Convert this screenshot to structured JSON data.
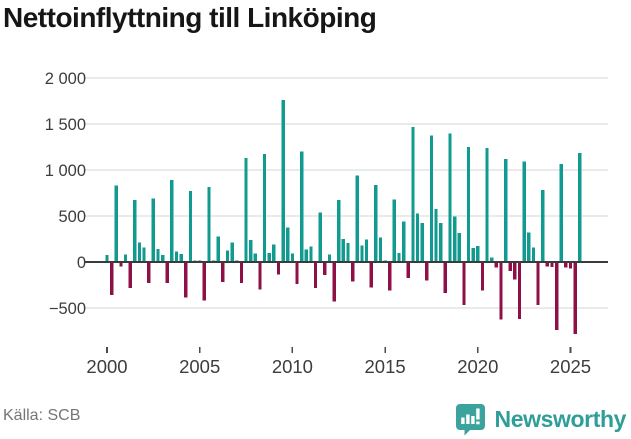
{
  "title": "Nettoinflyttning till Linköping",
  "source": "Källa: SCB",
  "logo": {
    "text": "Newsworthy",
    "badge_color": "#3ba29c",
    "text_color": "#2f9e99",
    "icon": "bar-chart-exclamation-badge"
  },
  "chart_data": {
    "type": "bar",
    "title": "Nettoinflyttning till Linköping",
    "frequency": "quarterly",
    "x_start": "2000 Q1",
    "categories_note": "quarters from 2000 Q1 to 2025 Q3",
    "values": [
      75,
      -360,
      830,
      -50,
      80,
      -285,
      675,
      210,
      160,
      -230,
      690,
      140,
      75,
      -230,
      890,
      115,
      85,
      -385,
      770,
      15,
      15,
      -420,
      815,
      15,
      275,
      -215,
      125,
      210,
      15,
      -230,
      1130,
      240,
      95,
      -300,
      1175,
      100,
      190,
      -135,
      1760,
      375,
      90,
      -240,
      1200,
      135,
      170,
      -285,
      540,
      -140,
      80,
      -430,
      675,
      250,
      205,
      -210,
      940,
      180,
      245,
      -275,
      835,
      265,
      15,
      -310,
      680,
      100,
      440,
      -175,
      1465,
      525,
      425,
      -200,
      1375,
      575,
      425,
      -335,
      1395,
      495,
      315,
      -465,
      1250,
      150,
      175,
      -310,
      1240,
      50,
      -60,
      -625,
      1120,
      -100,
      -190,
      -620,
      1095,
      320,
      160,
      -465,
      785,
      -50,
      -55,
      -740,
      1065,
      -60,
      -70,
      -780,
      1185
    ],
    "y_ticks": [
      2000,
      1500,
      1000,
      500,
      0,
      -500
    ],
    "y_tick_labels": [
      "2 000",
      "1 500",
      "1 000",
      "500",
      "0",
      "−500"
    ],
    "x_tick_years": [
      2000,
      2005,
      2010,
      2015,
      2020,
      2025
    ],
    "x_tick_labels": [
      "2000",
      "2005",
      "2010",
      "2015",
      "2020",
      "2025"
    ],
    "ylim": [
      -850,
      2000
    ],
    "grid": true,
    "legend": "none",
    "positive_color": "#119a90",
    "negative_color": "#8e1046",
    "grid_color": "#e3e3e3",
    "zero_line_color": "#3b3b3b",
    "tick_color": "#4a4a4a",
    "axis_text_color": "#3d3d3d"
  }
}
